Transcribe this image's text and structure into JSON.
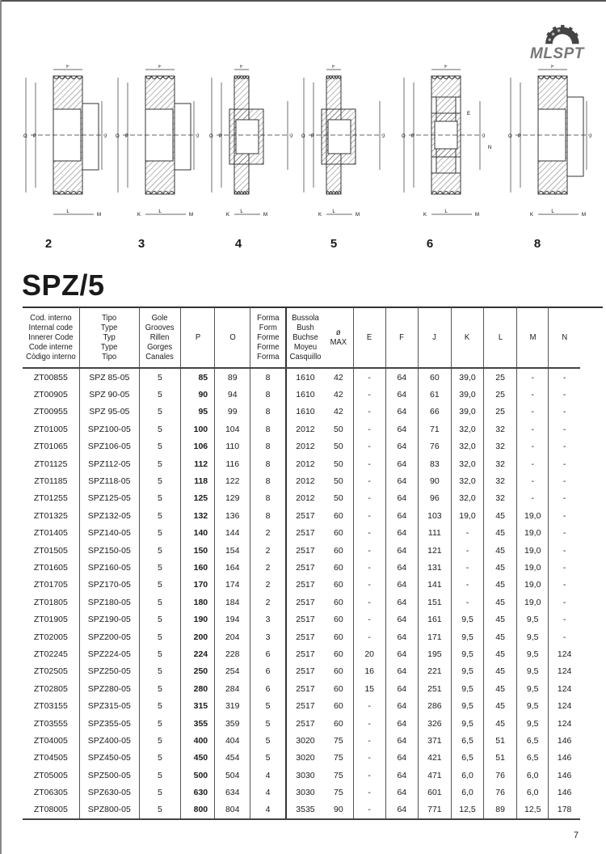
{
  "logo": {
    "text": "MLSPT"
  },
  "diagrams": [
    {
      "number": "2",
      "form": 2
    },
    {
      "number": "3",
      "form": 3
    },
    {
      "number": "4",
      "form": 4
    },
    {
      "number": "5",
      "form": 5
    },
    {
      "number": "6",
      "form": 6
    },
    {
      "number": "8",
      "form": 8
    }
  ],
  "dimension_labels": {
    "F": "F",
    "O": "O",
    "P": "P",
    "J": "J",
    "K": "K",
    "L": "L",
    "M": "M",
    "E": "E",
    "N": "N"
  },
  "title": "SPZ/5",
  "table": {
    "headers": [
      [
        "Cod. interno",
        "Internal code",
        "Innerer Code",
        "Code interne",
        "Còdigo interno"
      ],
      [
        "Tipo",
        "Type",
        "Typ",
        "Type",
        "Tipo"
      ],
      [
        "Gole",
        "Grooves",
        "Rillen",
        "Gorges",
        "Canales"
      ],
      [
        "P"
      ],
      [
        "O"
      ],
      [
        "Forma",
        "Form",
        "Forme",
        "Forme",
        "Forma"
      ],
      [
        "Bussola",
        "Bush",
        "Buchse",
        "Moyeu",
        "Casquillo"
      ],
      [
        "ø",
        "MAX"
      ],
      [
        "E"
      ],
      [
        "F"
      ],
      [
        "J"
      ],
      [
        "K"
      ],
      [
        "L"
      ],
      [
        "M"
      ],
      [
        "N"
      ]
    ],
    "rows": [
      [
        "ZT00855",
        "SPZ 85-05",
        "5",
        "85",
        "89",
        "8",
        "1610",
        "42",
        "-",
        "64",
        "60",
        "39,0",
        "25",
        "-",
        "-"
      ],
      [
        "ZT00905",
        "SPZ 90-05",
        "5",
        "90",
        "94",
        "8",
        "1610",
        "42",
        "-",
        "64",
        "61",
        "39,0",
        "25",
        "-",
        "-"
      ],
      [
        "ZT00955",
        "SPZ 95-05",
        "5",
        "95",
        "99",
        "8",
        "1610",
        "42",
        "-",
        "64",
        "66",
        "39,0",
        "25",
        "-",
        "-"
      ],
      [
        "ZT01005",
        "SPZ100-05",
        "5",
        "100",
        "104",
        "8",
        "2012",
        "50",
        "-",
        "64",
        "71",
        "32,0",
        "32",
        "-",
        "-"
      ],
      [
        "ZT01065",
        "SPZ106-05",
        "5",
        "106",
        "110",
        "8",
        "2012",
        "50",
        "-",
        "64",
        "76",
        "32,0",
        "32",
        "-",
        "-"
      ],
      [
        "ZT01125",
        "SPZ112-05",
        "5",
        "112",
        "116",
        "8",
        "2012",
        "50",
        "-",
        "64",
        "83",
        "32,0",
        "32",
        "-",
        "-"
      ],
      [
        "ZT01185",
        "SPZ118-05",
        "5",
        "118",
        "122",
        "8",
        "2012",
        "50",
        "-",
        "64",
        "90",
        "32,0",
        "32",
        "-",
        "-"
      ],
      [
        "ZT01255",
        "SPZ125-05",
        "5",
        "125",
        "129",
        "8",
        "2012",
        "50",
        "-",
        "64",
        "96",
        "32,0",
        "32",
        "-",
        "-"
      ],
      [
        "ZT01325",
        "SPZ132-05",
        "5",
        "132",
        "136",
        "8",
        "2517",
        "60",
        "-",
        "64",
        "103",
        "19,0",
        "45",
        "19,0",
        "-"
      ],
      [
        "ZT01405",
        "SPZ140-05",
        "5",
        "140",
        "144",
        "2",
        "2517",
        "60",
        "-",
        "64",
        "111",
        "-",
        "45",
        "19,0",
        "-"
      ],
      [
        "ZT01505",
        "SPZ150-05",
        "5",
        "150",
        "154",
        "2",
        "2517",
        "60",
        "-",
        "64",
        "121",
        "-",
        "45",
        "19,0",
        "-"
      ],
      [
        "ZT01605",
        "SPZ160-05",
        "5",
        "160",
        "164",
        "2",
        "2517",
        "60",
        "-",
        "64",
        "131",
        "-",
        "45",
        "19,0",
        "-"
      ],
      [
        "ZT01705",
        "SPZ170-05",
        "5",
        "170",
        "174",
        "2",
        "2517",
        "60",
        "-",
        "64",
        "141",
        "-",
        "45",
        "19,0",
        "-"
      ],
      [
        "ZT01805",
        "SPZ180-05",
        "5",
        "180",
        "184",
        "2",
        "2517",
        "60",
        "-",
        "64",
        "151",
        "-",
        "45",
        "19,0",
        "-"
      ],
      [
        "ZT01905",
        "SPZ190-05",
        "5",
        "190",
        "194",
        "3",
        "2517",
        "60",
        "-",
        "64",
        "161",
        "9,5",
        "45",
        "9,5",
        "-"
      ],
      [
        "ZT02005",
        "SPZ200-05",
        "5",
        "200",
        "204",
        "3",
        "2517",
        "60",
        "-",
        "64",
        "171",
        "9,5",
        "45",
        "9,5",
        "-"
      ],
      [
        "ZT02245",
        "SPZ224-05",
        "5",
        "224",
        "228",
        "6",
        "2517",
        "60",
        "20",
        "64",
        "195",
        "9,5",
        "45",
        "9,5",
        "124"
      ],
      [
        "ZT02505",
        "SPZ250-05",
        "5",
        "250",
        "254",
        "6",
        "2517",
        "60",
        "16",
        "64",
        "221",
        "9,5",
        "45",
        "9,5",
        "124"
      ],
      [
        "ZT02805",
        "SPZ280-05",
        "5",
        "280",
        "284",
        "6",
        "2517",
        "60",
        "15",
        "64",
        "251",
        "9,5",
        "45",
        "9,5",
        "124"
      ],
      [
        "ZT03155",
        "SPZ315-05",
        "5",
        "315",
        "319",
        "5",
        "2517",
        "60",
        "-",
        "64",
        "286",
        "9,5",
        "45",
        "9,5",
        "124"
      ],
      [
        "ZT03555",
        "SPZ355-05",
        "5",
        "355",
        "359",
        "5",
        "2517",
        "60",
        "-",
        "64",
        "326",
        "9,5",
        "45",
        "9,5",
        "124"
      ],
      [
        "ZT04005",
        "SPZ400-05",
        "5",
        "400",
        "404",
        "5",
        "3020",
        "75",
        "-",
        "64",
        "371",
        "6,5",
        "51",
        "6,5",
        "146"
      ],
      [
        "ZT04505",
        "SPZ450-05",
        "5",
        "450",
        "454",
        "5",
        "3020",
        "75",
        "-",
        "64",
        "421",
        "6,5",
        "51",
        "6,5",
        "146"
      ],
      [
        "ZT05005",
        "SPZ500-05",
        "5",
        "500",
        "504",
        "4",
        "3030",
        "75",
        "-",
        "64",
        "471",
        "6,0",
        "76",
        "6,0",
        "146"
      ],
      [
        "ZT06305",
        "SPZ630-05",
        "5",
        "630",
        "634",
        "4",
        "3030",
        "75",
        "-",
        "64",
        "601",
        "6,0",
        "76",
        "6,0",
        "146"
      ],
      [
        "ZT08005",
        "SPZ800-05",
        "5",
        "800",
        "804",
        "4",
        "3535",
        "90",
        "-",
        "64",
        "771",
        "12,5",
        "89",
        "12,5",
        "178"
      ]
    ]
  },
  "page_number": "7"
}
